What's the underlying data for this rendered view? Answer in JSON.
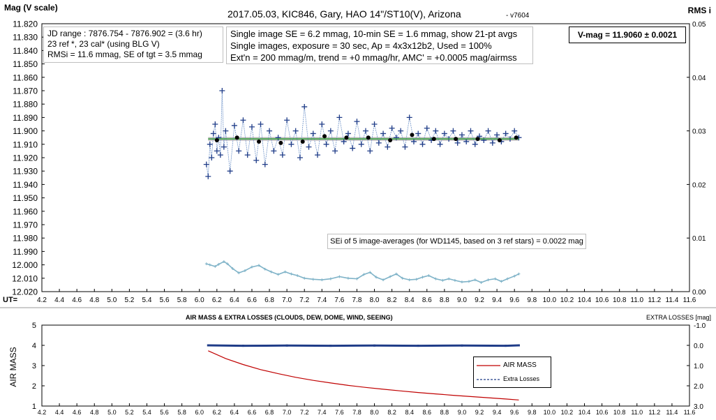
{
  "chart_data": [
    {
      "type": "scatter",
      "title": "2017.05.03,  KIC846,  Gary, HAO 14\"/ST10(V), Arizona",
      "version": " - v7604",
      "ylabel": "Mag (V scale)",
      "y2label": "RMS i",
      "xlabel": "UT=",
      "xlim": [
        4.2,
        11.6
      ],
      "ylim": [
        11.82,
        12.02
      ],
      "y_reversed": true,
      "y2lim": [
        0,
        0.05
      ],
      "x_ticks": [
        "4.2",
        "4.4",
        "4.6",
        "4.8",
        "5.0",
        "5.2",
        "5.4",
        "5.6",
        "5.8",
        "6.0",
        "6.2",
        "6.4",
        "6.6",
        "6.8",
        "7.0",
        "7.2",
        "7.4",
        "7.6",
        "7.8",
        "8.0",
        "8.2",
        "8.4",
        "8.6",
        "8.8",
        "9.0",
        "9.2",
        "9.4",
        "9.6",
        "9.8",
        "10.0",
        "10.2",
        "10.4",
        "10.6",
        "10.8",
        "11.0",
        "11.2",
        "11.4",
        "11.6"
      ],
      "y_ticks": [
        "11.820",
        "11.830",
        "11.840",
        "11.850",
        "11.860",
        "11.870",
        "11.880",
        "11.890",
        "11.900",
        "11.910",
        "11.920",
        "11.930",
        "11.940",
        "11.950",
        "11.960",
        "11.970",
        "11.980",
        "11.990",
        "12.000",
        "12.010",
        "12.020"
      ],
      "y2_ticks": [
        "0.05",
        "0.04",
        "0.03",
        "0.02",
        "0.01",
        "0.00"
      ],
      "grid": false,
      "annotations": {
        "jd_lines": [
          "JD range : 7876.754  - 7876.902  = (3.6 hr)",
          "23 ref *, 23 cal* (using BLG V)",
          "RMSi = 11.6 mmag, SE of tgt = 3.5 mmag"
        ],
        "info_lines": [
          "Single image SE = 6.2 mmag, 10-min SE = 1.6 mmag, show 21-pt avgs",
          "Single images, exposure = 30  sec, Ap = 4x3x12b2, Used = 100%",
          "Ext'n = 200 mmag/m, trend = +0 mmag/hr, AMC' = +0.0005 mag/airmss"
        ],
        "vmag": "V-mag = 11.9060 ± 0.0021",
        "sei": "SEi of 5 image-averages (for WD1145, based on 3 ref stars) = 0.0022 mag"
      },
      "series": [
        {
          "name": "single images",
          "color": "#1f3c88",
          "marker": "plus",
          "x": [
            6.08,
            6.1,
            6.12,
            6.14,
            6.16,
            6.18,
            6.2,
            6.22,
            6.24,
            6.26,
            6.28,
            6.3,
            6.35,
            6.4,
            6.45,
            6.5,
            6.55,
            6.6,
            6.65,
            6.7,
            6.75,
            6.8,
            6.85,
            6.9,
            6.95,
            7.0,
            7.05,
            7.1,
            7.15,
            7.2,
            7.25,
            7.3,
            7.35,
            7.4,
            7.45,
            7.5,
            7.55,
            7.6,
            7.65,
            7.7,
            7.75,
            7.8,
            7.85,
            7.9,
            7.95,
            8.0,
            8.05,
            8.1,
            8.15,
            8.2,
            8.25,
            8.3,
            8.35,
            8.4,
            8.45,
            8.5,
            8.55,
            8.6,
            8.65,
            8.7,
            8.75,
            8.8,
            8.85,
            8.9,
            8.95,
            9.0,
            9.05,
            9.1,
            9.15,
            9.2,
            9.25,
            9.3,
            9.35,
            9.4,
            9.45,
            9.5,
            9.55,
            9.6,
            9.65
          ],
          "y": [
            11.925,
            11.934,
            11.91,
            11.92,
            11.902,
            11.895,
            11.915,
            11.905,
            11.918,
            11.87,
            11.912,
            11.9,
            11.93,
            11.896,
            11.915,
            11.892,
            11.918,
            11.897,
            11.922,
            11.895,
            11.925,
            11.9,
            11.915,
            11.905,
            11.918,
            11.892,
            11.91,
            11.9,
            11.92,
            11.882,
            11.912,
            11.902,
            11.918,
            11.895,
            11.91,
            11.9,
            11.915,
            11.89,
            11.908,
            11.902,
            11.913,
            11.893,
            11.91,
            11.9,
            11.915,
            11.895,
            11.909,
            11.902,
            11.912,
            11.898,
            11.905,
            11.9,
            11.912,
            11.89,
            11.908,
            11.902,
            11.91,
            11.898,
            11.907,
            11.9,
            11.91,
            11.902,
            11.906,
            11.9,
            11.909,
            11.903,
            11.908,
            11.9,
            11.91,
            11.904,
            11.907,
            11.9,
            11.909,
            11.903,
            11.908,
            11.902,
            11.906,
            11.9,
            11.905
          ]
        },
        {
          "name": "21-pt avgs",
          "color": "#000000",
          "marker": "dot",
          "x": [
            6.2,
            6.43,
            6.68,
            6.93,
            7.18,
            7.43,
            7.68,
            7.93,
            8.18,
            8.43,
            8.68,
            8.93,
            9.18,
            9.43,
            9.62
          ],
          "y": [
            11.907,
            11.905,
            11.908,
            11.909,
            11.908,
            11.904,
            11.905,
            11.905,
            11.907,
            11.903,
            11.906,
            11.906,
            11.906,
            11.907,
            11.905
          ]
        },
        {
          "name": "trend",
          "color": "#3aa640",
          "x": [
            6.1,
            9.65
          ],
          "y": [
            11.906,
            11.906
          ]
        },
        {
          "name": "RMS i",
          "color": "#7fb3c8",
          "axis": "y2",
          "x": [
            6.08,
            6.12,
            6.18,
            6.22,
            6.28,
            6.32,
            6.38,
            6.45,
            6.52,
            6.6,
            6.68,
            6.75,
            6.82,
            6.9,
            6.98,
            7.05,
            7.12,
            7.2,
            7.3,
            7.4,
            7.5,
            7.6,
            7.7,
            7.8,
            7.88,
            7.95,
            8.02,
            8.1,
            8.18,
            8.25,
            8.32,
            8.4,
            8.48,
            8.55,
            8.62,
            8.7,
            8.78,
            8.85,
            8.92,
            9.0,
            9.08,
            9.15,
            9.22,
            9.3,
            9.38,
            9.45,
            9.52,
            9.6,
            9.65
          ],
          "y": [
            0.0052,
            0.005,
            0.0047,
            0.0051,
            0.0056,
            0.0052,
            0.0043,
            0.0035,
            0.0039,
            0.0046,
            0.0049,
            0.0042,
            0.0037,
            0.0032,
            0.0037,
            0.0033,
            0.003,
            0.0025,
            0.0023,
            0.0022,
            0.0024,
            0.0028,
            0.0025,
            0.0024,
            0.0032,
            0.0036,
            0.0027,
            0.0022,
            0.0028,
            0.0033,
            0.0025,
            0.0022,
            0.0023,
            0.0027,
            0.003,
            0.0024,
            0.0021,
            0.0024,
            0.0021,
            0.0018,
            0.0019,
            0.0022,
            0.0017,
            0.0022,
            0.0024,
            0.0019,
            0.0024,
            0.0029,
            0.0033
          ]
        }
      ]
    },
    {
      "type": "line",
      "title": "AIR MASS & EXTRA LOSSES (CLOUDS, DEW, DOME, WIND, SEEING)",
      "ylabel": "AIR MASS",
      "y2label": "EXTRA LOSSES [mag]",
      "xlim": [
        4.2,
        11.6
      ],
      "ylim": [
        1,
        5
      ],
      "y2lim": [
        -1.0,
        3.0
      ],
      "y2_reversed": true,
      "x_ticks": [
        "4.2",
        "4.4",
        "4.6",
        "4.8",
        "5.0",
        "5.2",
        "5.4",
        "5.6",
        "5.8",
        "6.0",
        "6.2",
        "6.4",
        "6.6",
        "6.8",
        "7.0",
        "7.2",
        "7.4",
        "7.6",
        "7.8",
        "8.0",
        "8.2",
        "8.4",
        "8.6",
        "8.8",
        "9.0",
        "9.2",
        "9.4",
        "9.6",
        "9.8",
        "10.0",
        "10.2",
        "10.4",
        "10.6",
        "10.8",
        "11.0",
        "11.2",
        "11.4",
        "11.6"
      ],
      "y_ticks": [
        "5",
        "4",
        "3",
        "2",
        "1"
      ],
      "y2_ticks": [
        "-1.0",
        "0.0",
        "1.0",
        "2.0",
        "3.0"
      ],
      "legend": {
        "position": "right",
        "entries": [
          "AIR MASS",
          "Extra Losses"
        ]
      },
      "series": [
        {
          "name": "AIR MASS",
          "color": "#c00000",
          "x": [
            6.1,
            6.3,
            6.5,
            6.7,
            6.9,
            7.1,
            7.3,
            7.5,
            7.7,
            7.9,
            8.1,
            8.3,
            8.5,
            8.7,
            8.9,
            9.1,
            9.3,
            9.5,
            9.65
          ],
          "y": [
            3.73,
            3.35,
            3.05,
            2.8,
            2.6,
            2.42,
            2.27,
            2.14,
            2.02,
            1.92,
            1.83,
            1.75,
            1.67,
            1.6,
            1.53,
            1.47,
            1.41,
            1.35,
            1.3
          ]
        },
        {
          "name": "Extra Losses",
          "color": "#1f3c88",
          "axis": "y2",
          "x": [
            6.1,
            6.5,
            7.0,
            7.5,
            8.0,
            8.5,
            9.0,
            9.5,
            9.65
          ],
          "y": [
            0.0,
            0.02,
            0.01,
            0.02,
            0.01,
            0.02,
            0.01,
            0.02,
            0.0
          ]
        }
      ]
    }
  ]
}
